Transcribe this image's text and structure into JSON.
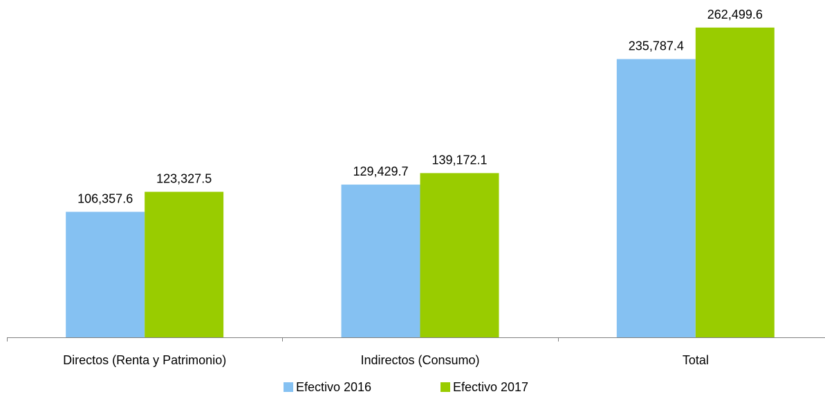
{
  "chart_data": {
    "type": "bar",
    "categories": [
      "Directos (Renta y Patrimonio)",
      "Indirectos (Consumo)",
      "Total"
    ],
    "series": [
      {
        "name": "Efectivo 2016",
        "values": [
          106357.6,
          129429.7,
          235787.4
        ],
        "labels": [
          "106,357.6",
          "129,429.7",
          "235,787.4"
        ],
        "color": "#85C1F2"
      },
      {
        "name": "Efectivo 2017",
        "values": [
          123327.5,
          139172.1,
          262499.6
        ],
        "labels": [
          "123,327.5",
          "139,172.1",
          "262,499.6"
        ],
        "color": "#99CC00"
      }
    ],
    "ylim": [
      0,
      280000
    ],
    "grid": false,
    "y_axis_visible": false,
    "data_labels": true,
    "legend_position": "bottom"
  }
}
